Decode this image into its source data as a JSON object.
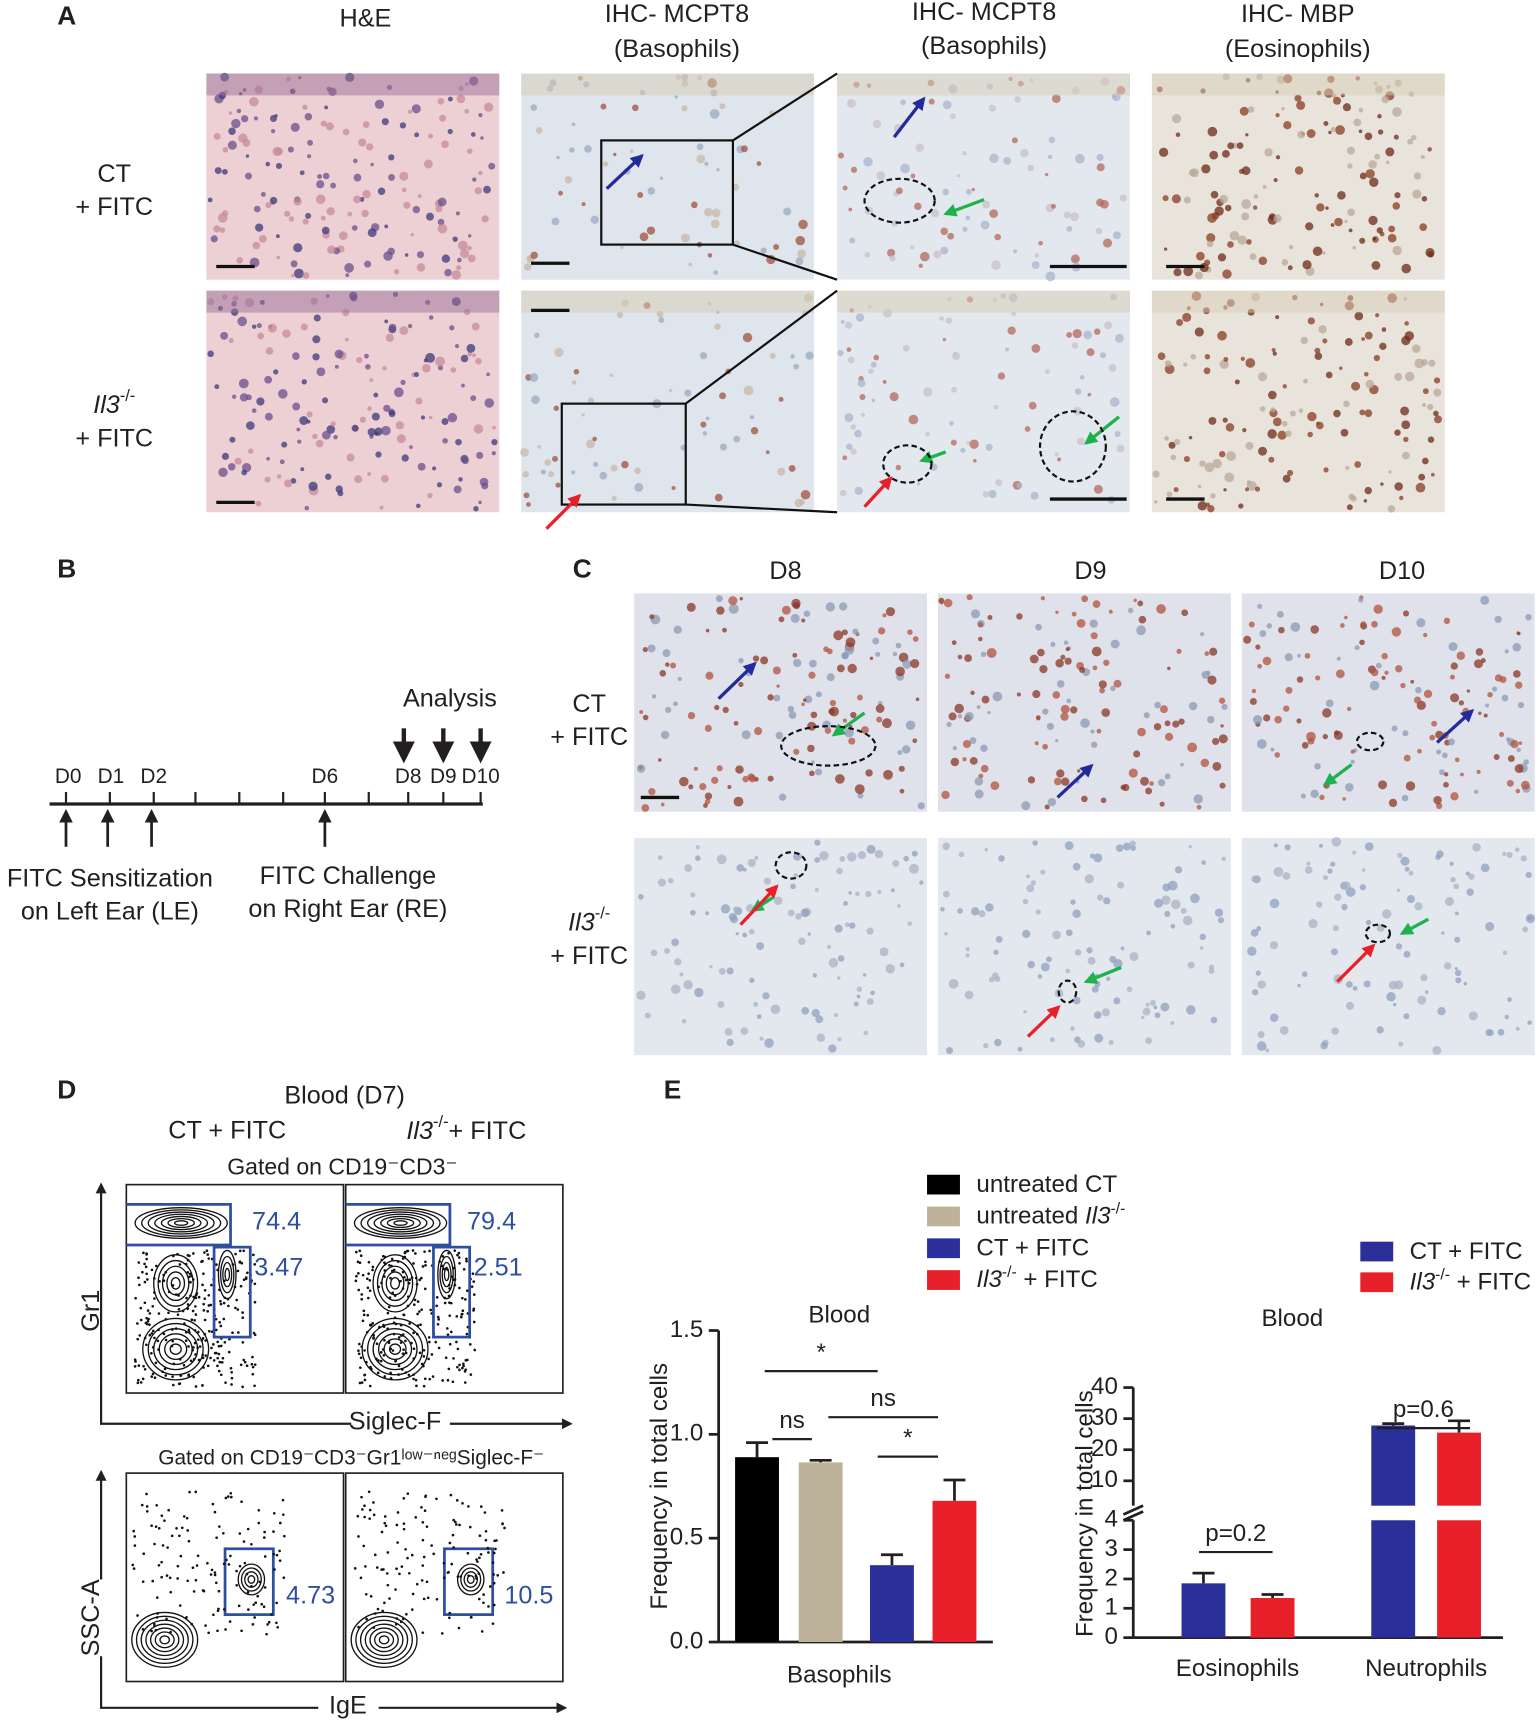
{
  "panel_labels": [
    "A",
    "B",
    "C",
    "D",
    "E"
  ],
  "panel_a": {
    "columns": [
      [
        "H&E"
      ],
      [
        "IHC- MCPT8",
        "(Basophils)"
      ],
      [
        "IHC- MCPT8",
        "(Basophils)"
      ],
      [
        "IHC- MBP",
        "(Eosinophils)"
      ]
    ],
    "rows": [
      [
        "CT",
        "+ FITC"
      ],
      [
        "Il3-/-",
        "+ FITC"
      ]
    ]
  },
  "panel_b": {
    "analysis": "Analysis",
    "days": [
      "D0",
      "D1",
      "D2",
      "D6",
      "D8",
      "D9",
      "D10"
    ],
    "sensitization": [
      "FITC Sensitization",
      "on Left Ear (LE)"
    ],
    "challenge": [
      "FITC Challenge",
      "on Right Ear (RE)"
    ]
  },
  "panel_c": {
    "columns": [
      "D8",
      "D9",
      "D10"
    ],
    "rows": [
      [
        "CT",
        "+ FITC"
      ],
      [
        "Il3-/-",
        "+ FITC"
      ]
    ]
  },
  "panel_d": {
    "title": "Blood (D7)",
    "columns": [
      "CT + FITC",
      "Il3-/-+ FITC"
    ],
    "gate_top": "Gated on CD19⁻CD3⁻",
    "gate_bottom": "Gated on CD19⁻CD3⁻Gr1ˡᵒʷ⁻ⁿᵉᵍSiglec-F⁻",
    "top_axes": {
      "x": "Siglec-F",
      "y": "Gr1"
    },
    "bottom_axes": {
      "x": "IgE",
      "y": "SSC-A"
    },
    "top_gates": [
      [
        "74.4",
        "3.47"
      ],
      [
        "79.4",
        "2.51"
      ]
    ],
    "bottom_gates": [
      "4.73",
      "10.5"
    ]
  },
  "chart_data": [
    {
      "type": "bar",
      "title": "Blood",
      "ylabel": "Frequency in total cells",
      "categories": [
        "Basophils"
      ],
      "ylim": [
        0,
        1.5
      ],
      "yticks": [
        {
          "value": 0,
          "label": "0.0"
        },
        0.5,
        {
          "value": 1,
          "label": "1.0"
        },
        1.5
      ],
      "series": [
        {
          "name": "untreated CT",
          "color": "#000000",
          "values": [
            0.89
          ],
          "errors": [
            0.07
          ]
        },
        {
          "name": "untreated Il3-/-",
          "color": "#bdb29a",
          "values": [
            0.865
          ],
          "errors": [
            0.01
          ]
        },
        {
          "name": "CT + FITC",
          "color": "#2b2f9a",
          "values": [
            0.37
          ],
          "errors": [
            0.05
          ]
        },
        {
          "name": "Il3-/- + FITC",
          "color": "#e8202a",
          "values": [
            0.68
          ],
          "errors": [
            0.1
          ]
        }
      ],
      "annotations": [
        "*",
        "ns",
        "ns",
        "*"
      ]
    },
    {
      "type": "bar",
      "title": "Blood",
      "ylabel": "Frequency in total cells",
      "categories": [
        "Eosinophils",
        "Neutrophils"
      ],
      "ylim": [
        [
          0,
          4
        ],
        [
          2,
          40
        ]
      ],
      "yticks": [
        [
          0,
          1,
          2,
          3,
          4
        ],
        [
          10,
          20,
          30,
          40
        ]
      ],
      "series": [
        {
          "name": "CT + FITC",
          "color": "#2b2f9a",
          "values": [
            1.85,
            27.8
          ],
          "errors": [
            0.35,
            0.6
          ]
        },
        {
          "name": "Il3-/- + FITC",
          "color": "#e8202a",
          "values": [
            1.35,
            25.5
          ],
          "errors": [
            0.12,
            3.8
          ]
        }
      ],
      "annotations": [
        "p=0.2",
        "p=0.6"
      ]
    }
  ]
}
